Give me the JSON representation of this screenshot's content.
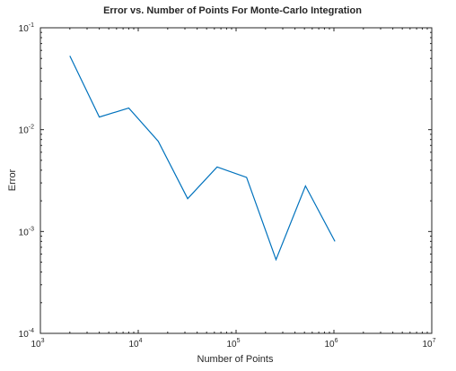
{
  "chart_data": {
    "type": "line",
    "title": "Error vs. Number of Points For Monte-Carlo Integration",
    "xlabel": "Number of Points",
    "ylabel": "Error",
    "xscale": "log",
    "yscale": "log",
    "xlim": [
      1000,
      10000000
    ],
    "ylim": [
      0.0001,
      0.1
    ],
    "grid": false,
    "box": true,
    "x_ticks": [
      {
        "base": "10",
        "exp": "3",
        "value": 1000
      },
      {
        "base": "10",
        "exp": "4",
        "value": 10000
      },
      {
        "base": "10",
        "exp": "5",
        "value": 100000
      },
      {
        "base": "10",
        "exp": "6",
        "value": 1000000
      },
      {
        "base": "10",
        "exp": "7",
        "value": 10000000
      }
    ],
    "y_ticks": [
      {
        "base": "10",
        "exp": "-4",
        "value": 0.0001
      },
      {
        "base": "10",
        "exp": "-3",
        "value": 0.001
      },
      {
        "base": "10",
        "exp": "-2",
        "value": 0.01
      },
      {
        "base": "10",
        "exp": "-1",
        "value": 0.1
      }
    ],
    "series": [
      {
        "color": "#0072bd",
        "x": [
          2000,
          4000,
          8000,
          16000,
          32000,
          64000,
          128000,
          256000,
          512000,
          1024000
        ],
        "y": [
          0.053,
          0.0133,
          0.0163,
          0.0077,
          0.0021,
          0.0043,
          0.0034,
          0.00053,
          0.0028,
          0.0008
        ]
      }
    ]
  }
}
